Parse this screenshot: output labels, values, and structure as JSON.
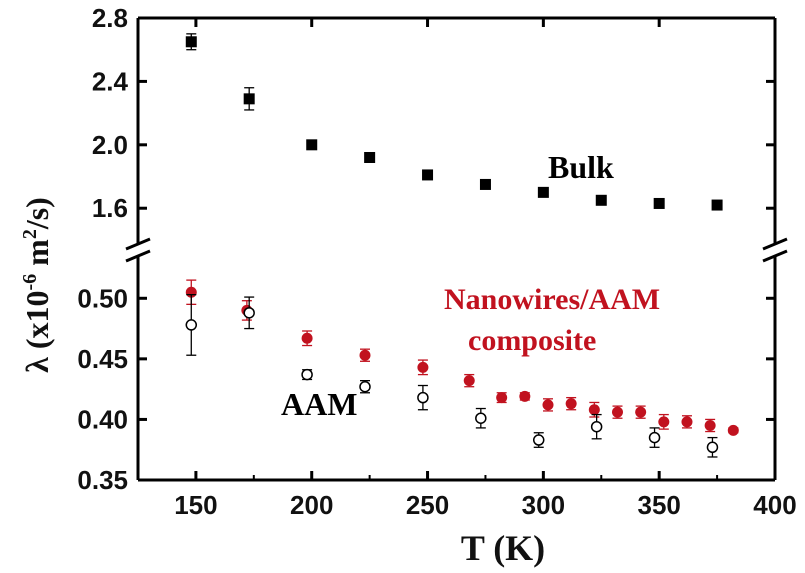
{
  "chart_data": {
    "type": "scatter",
    "xlabel": "T (K)",
    "ylabel": {
      "main": "λ (x10",
      "exp": "-6",
      "unit": " m",
      "unit_exp": "2",
      "tail": "/s)"
    },
    "xlim": [
      125,
      400
    ],
    "x_ticks": [
      150,
      200,
      250,
      300,
      350,
      400
    ],
    "x_tick_labels": [
      "150",
      "200",
      "250",
      "300",
      "350",
      "400"
    ],
    "broken_y_axis": true,
    "y_upper": {
      "ylim": [
        1.45,
        2.8
      ],
      "ticks": [
        1.6,
        2.0,
        2.4,
        2.8
      ],
      "tick_labels": [
        "1.6",
        "2.0",
        "2.4",
        "2.8"
      ]
    },
    "y_lower": {
      "ylim": [
        0.35,
        0.525
      ],
      "ticks": [
        0.35,
        0.4,
        0.45,
        0.5
      ],
      "tick_labels": [
        "0.35",
        "0.40",
        "0.45",
        "0.50"
      ]
    },
    "grid": false,
    "annotations": [
      {
        "text": "Bulk",
        "color": "#000000"
      },
      {
        "text": "Nanowires/AAM",
        "color": "#c1121f"
      },
      {
        "text": "composite",
        "color": "#c1121f"
      },
      {
        "text": "AAM",
        "color": "#000000"
      }
    ],
    "series": [
      {
        "segment": "upper",
        "marker": "filled-square",
        "color": "#000000",
        "points": [
          {
            "x": 148,
            "y": 2.65,
            "err": 0.05
          },
          {
            "x": 173,
            "y": 2.29,
            "err": 0.07
          },
          {
            "x": 200,
            "y": 2.0,
            "err": 0.02
          },
          {
            "x": 225,
            "y": 1.92,
            "err": 0
          },
          {
            "x": 250,
            "y": 1.81,
            "err": 0
          },
          {
            "x": 275,
            "y": 1.75,
            "err": 0
          },
          {
            "x": 300,
            "y": 1.7,
            "err": 0
          },
          {
            "x": 325,
            "y": 1.65,
            "err": 0
          },
          {
            "x": 350,
            "y": 1.63,
            "err": 0
          },
          {
            "x": 375,
            "y": 1.62,
            "err": 0
          }
        ]
      },
      {
        "segment": "lower",
        "marker": "filled-circle",
        "color": "#c1121f",
        "points": [
          {
            "x": 148,
            "y": 0.505,
            "err": 0.01
          },
          {
            "x": 172,
            "y": 0.49,
            "err": 0.008
          },
          {
            "x": 198,
            "y": 0.467,
            "err": 0.006
          },
          {
            "x": 223,
            "y": 0.453,
            "err": 0.005
          },
          {
            "x": 248,
            "y": 0.443,
            "err": 0.006
          },
          {
            "x": 268,
            "y": 0.432,
            "err": 0.005
          },
          {
            "x": 282,
            "y": 0.418,
            "err": 0.004
          },
          {
            "x": 292,
            "y": 0.419,
            "err": 0.003
          },
          {
            "x": 302,
            "y": 0.412,
            "err": 0.005
          },
          {
            "x": 312,
            "y": 0.413,
            "err": 0.005
          },
          {
            "x": 322,
            "y": 0.408,
            "err": 0.006
          },
          {
            "x": 332,
            "y": 0.406,
            "err": 0.005
          },
          {
            "x": 342,
            "y": 0.406,
            "err": 0.005
          },
          {
            "x": 352,
            "y": 0.398,
            "err": 0.006
          },
          {
            "x": 362,
            "y": 0.398,
            "err": 0.005
          },
          {
            "x": 372,
            "y": 0.395,
            "err": 0.005
          },
          {
            "x": 382,
            "y": 0.391,
            "err": 0.002
          }
        ]
      },
      {
        "segment": "lower",
        "marker": "open-circle",
        "color": "#000000",
        "points": [
          {
            "x": 148,
            "y": 0.478,
            "err": 0.025
          },
          {
            "x": 173,
            "y": 0.488,
            "err": 0.013
          },
          {
            "x": 198,
            "y": 0.437,
            "err": 0.004
          },
          {
            "x": 223,
            "y": 0.427,
            "err": 0.005
          },
          {
            "x": 248,
            "y": 0.418,
            "err": 0.01
          },
          {
            "x": 273,
            "y": 0.401,
            "err": 0.008
          },
          {
            "x": 298,
            "y": 0.383,
            "err": 0.006
          },
          {
            "x": 323,
            "y": 0.394,
            "err": 0.01
          },
          {
            "x": 348,
            "y": 0.385,
            "err": 0.008
          },
          {
            "x": 373,
            "y": 0.377,
            "err": 0.008
          }
        ]
      }
    ]
  }
}
